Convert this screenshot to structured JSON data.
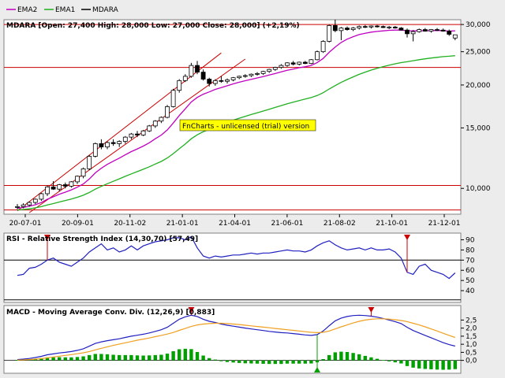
{
  "legend": [
    {
      "name": "EMA2",
      "color": "#c000c0"
    },
    {
      "name": "EMA1",
      "color": "#20b020"
    },
    {
      "name": "MDARA",
      "color": "#000000"
    }
  ],
  "price_title": "MDARA [Open: 27,400  High: 28,000  Low: 27,000  Close: 28,000] (+2,19%)",
  "rsi_title": "RSI - Relative Strength Index (14,30,70) [57,49]",
  "macd_title": "MACD - Moving Average Conv. Div. (12,26,9) [0,883]",
  "watermark": "FnCharts - unlicensed (trial) version",
  "colors": {
    "background": "#ececec",
    "panel": "#ffffff",
    "up": "#ffffff",
    "down": "#000000",
    "ema2": "#c000c0",
    "ema1": "#20b020",
    "rsi": "#2020c0",
    "macd": "#2020c0",
    "signal": "#f0a020",
    "hist": "#00a000",
    "hline": "#cc0000",
    "watermark_bg": "#ffff00"
  },
  "chart_data": [
    {
      "type": "candlestick",
      "title": "MDARA [Open: 27,400  High: 28,000  Low: 27,000  Close: 28,000] (+2,19%)",
      "y_scale": "log",
      "ylim": [
        8500,
        30500
      ],
      "y_ticks": [
        {
          "value": 10000,
          "label": "10,000"
        },
        {
          "value": 15000,
          "label": "15,000"
        },
        {
          "value": 20000,
          "label": "20,000"
        },
        {
          "value": 25000,
          "label": "25,000"
        },
        {
          "value": 30000,
          "label": "30,000"
        }
      ],
      "x_ticks": [
        "20-07-01",
        "20-09-01",
        "20-11-02",
        "21-01-01",
        "21-04-01",
        "21-06-01",
        "21-08-02",
        "21-10-01",
        "21-12-01"
      ],
      "horizontal_lines": [
        30000,
        22500,
        10200,
        8650
      ],
      "candles": [
        [
          8800,
          9000,
          8700,
          8850
        ],
        [
          8850,
          9050,
          8750,
          8950
        ],
        [
          8950,
          9150,
          8850,
          9100
        ],
        [
          9100,
          9350,
          9000,
          9300
        ],
        [
          9300,
          9700,
          9200,
          9650
        ],
        [
          9650,
          10200,
          9500,
          10100
        ],
        [
          10100,
          10500,
          9900,
          9950
        ],
        [
          9950,
          10300,
          9800,
          10250
        ],
        [
          10250,
          10400,
          10000,
          10150
        ],
        [
          10150,
          10500,
          10050,
          10450
        ],
        [
          10450,
          10900,
          10300,
          10850
        ],
        [
          10850,
          11500,
          10700,
          11400
        ],
        [
          11400,
          12500,
          11300,
          12400
        ],
        [
          12400,
          13600,
          12300,
          13500
        ],
        [
          13500,
          13900,
          13000,
          13200
        ],
        [
          13200,
          13700,
          13000,
          13600
        ],
        [
          13600,
          13900,
          13300,
          13500
        ],
        [
          13500,
          13800,
          13200,
          13700
        ],
        [
          13700,
          14200,
          13500,
          14100
        ],
        [
          14100,
          14500,
          13900,
          14400
        ],
        [
          14400,
          14700,
          14100,
          14300
        ],
        [
          14300,
          14800,
          14200,
          14700
        ],
        [
          14700,
          15300,
          14600,
          15200
        ],
        [
          15200,
          15800,
          15000,
          15700
        ],
        [
          15700,
          16200,
          15500,
          16100
        ],
        [
          16100,
          17500,
          16000,
          17300
        ],
        [
          17300,
          19500,
          17200,
          19300
        ],
        [
          19300,
          20800,
          19000,
          20600
        ],
        [
          20600,
          21500,
          20400,
          21200
        ],
        [
          21200,
          23200,
          21000,
          22800
        ],
        [
          22800,
          23500,
          21500,
          21800
        ],
        [
          21800,
          22200,
          20600,
          20800
        ],
        [
          20800,
          21000,
          19800,
          20200
        ],
        [
          20200,
          20800,
          19900,
          20600
        ],
        [
          20600,
          21200,
          20300,
          20500
        ],
        [
          20500,
          20900,
          20200,
          20700
        ],
        [
          20700,
          21100,
          20500,
          21000
        ],
        [
          21000,
          21300,
          20800,
          21200
        ],
        [
          21200,
          21500,
          21000,
          21300
        ],
        [
          21300,
          21600,
          21100,
          21500
        ],
        [
          21500,
          21800,
          21300,
          21600
        ],
        [
          21600,
          22000,
          21400,
          21900
        ],
        [
          21900,
          22300,
          21700,
          22200
        ],
        [
          22200,
          22600,
          22000,
          22500
        ],
        [
          22500,
          23000,
          22300,
          22800
        ],
        [
          22800,
          23300,
          22600,
          23200
        ],
        [
          23200,
          23500,
          22800,
          23000
        ],
        [
          23000,
          23400,
          22800,
          23300
        ],
        [
          23300,
          23500,
          23000,
          23100
        ],
        [
          23100,
          23800,
          23000,
          23700
        ],
        [
          23700,
          25200,
          23600,
          25000
        ],
        [
          25000,
          27000,
          24800,
          26800
        ],
        [
          26800,
          30000,
          26600,
          29800
        ],
        [
          29800,
          31000,
          28500,
          28800
        ],
        [
          28800,
          29500,
          27000,
          29300
        ],
        [
          29300,
          29600,
          28800,
          29000
        ],
        [
          29000,
          29500,
          28700,
          29300
        ],
        [
          29300,
          29800,
          29000,
          29600
        ],
        [
          29600,
          29900,
          29300,
          29500
        ],
        [
          29500,
          29800,
          29200,
          29700
        ],
        [
          29700,
          29900,
          29400,
          29600
        ],
        [
          29600,
          29800,
          29300,
          29400
        ],
        [
          29400,
          29700,
          29100,
          29500
        ],
        [
          29500,
          29700,
          29200,
          29300
        ],
        [
          29300,
          29500,
          28800,
          28900
        ],
        [
          28900,
          29200,
          27500,
          28200
        ],
        [
          28200,
          28900,
          26800,
          28600
        ],
        [
          28600,
          29200,
          28400,
          29000
        ],
        [
          29000,
          29300,
          28600,
          28700
        ],
        [
          28700,
          29100,
          28400,
          29000
        ],
        [
          29000,
          29300,
          28700,
          28900
        ],
        [
          28900,
          29200,
          28600,
          28700
        ],
        [
          28700,
          29000,
          27800,
          28100
        ],
        [
          27400,
          28000,
          27000,
          28000
        ]
      ],
      "series": [
        {
          "name": "EMA2",
          "values": [
            8750,
            8800,
            8870,
            8960,
            9100,
            9300,
            9450,
            9620,
            9750,
            9900,
            10080,
            10300,
            10650,
            11100,
            11450,
            11750,
            12000,
            12250,
            12520,
            12800,
            13030,
            13280,
            13580,
            13950,
            14300,
            14800,
            15500,
            16300,
            17050,
            17850,
            18400,
            18800,
            19100,
            19420,
            19650,
            19900,
            20150,
            20380,
            20580,
            20780,
            20960,
            21160,
            21380,
            21600,
            21840,
            22070,
            22260,
            22450,
            22600,
            22800,
            23250,
            23900,
            24900,
            25800,
            26600,
            27200,
            27650,
            28050,
            28300,
            28500,
            28650,
            28750,
            28850,
            28900,
            28900,
            28780,
            28750,
            28780,
            28760,
            28800,
            28820,
            28800,
            28700,
            28750
          ]
        },
        {
          "name": "EMA1",
          "values": [
            8650,
            8680,
            8720,
            8780,
            8850,
            8950,
            9030,
            9130,
            9220,
            9310,
            9420,
            9550,
            9730,
            9950,
            10140,
            10320,
            10490,
            10660,
            10840,
            11020,
            11190,
            11370,
            11560,
            11770,
            11980,
            12260,
            12620,
            13040,
            13460,
            13950,
            14320,
            14620,
            14870,
            15120,
            15350,
            15580,
            15800,
            16010,
            16210,
            16410,
            16600,
            16800,
            17000,
            17210,
            17420,
            17640,
            17830,
            18020,
            18200,
            18380,
            18640,
            18990,
            19470,
            19920,
            20360,
            20750,
            21120,
            21480,
            21800,
            22100,
            22370,
            22620,
            22850,
            23060,
            23240,
            23380,
            23540,
            23700,
            23830,
            23960,
            24080,
            24190,
            24260,
            24340
          ]
        }
      ],
      "trend_lines": [
        {
          "from": [
            0,
            8600
          ],
          "to": [
            34,
            24800
          ]
        },
        {
          "from": [
            2,
            8500
          ],
          "to": [
            38,
            23800
          ]
        }
      ]
    },
    {
      "type": "line",
      "title": "RSI - Relative Strength Index (14,30,70) [57,49]",
      "ylim": [
        30,
        95
      ],
      "y_ticks": [
        40,
        50,
        60,
        70,
        80,
        90
      ],
      "horizontal_lines": [
        70,
        31
      ],
      "series": [
        {
          "name": "RSI",
          "values": [
            55,
            56,
            62,
            63,
            66,
            70,
            72,
            68,
            66,
            64,
            68,
            72,
            78,
            82,
            86,
            80,
            82,
            78,
            80,
            84,
            80,
            84,
            86,
            88,
            89,
            90,
            92,
            92,
            90,
            93,
            82,
            74,
            72,
            74,
            73,
            74,
            75,
            75,
            76,
            77,
            76,
            77,
            77,
            78,
            79,
            80,
            79,
            79,
            78,
            80,
            84,
            87,
            89,
            85,
            82,
            80,
            81,
            82,
            80,
            82,
            80,
            80,
            81,
            78,
            72,
            58,
            56,
            64,
            66,
            60,
            58,
            56,
            52,
            57.49
          ]
        }
      ],
      "signal_markers": [
        {
          "index": 5,
          "kind": "down"
        },
        {
          "index": 65,
          "kind": "down"
        }
      ]
    },
    {
      "type": "line",
      "title": "MACD - Moving Average Conv. Div. (12,26,9) [0,883]",
      "ylim": [
        -0.7,
        3.3
      ],
      "y_ticks": [
        {
          "value": 0,
          "label": "0,0"
        },
        {
          "value": 0.5,
          "label": "0,5"
        },
        {
          "value": 1,
          "label": "1,0"
        },
        {
          "value": 1.5,
          "label": "1,5"
        },
        {
          "value": 2,
          "label": "2,0"
        },
        {
          "value": 2.5,
          "label": "2,5"
        }
      ],
      "horizontal_lines": [
        0
      ],
      "series": [
        {
          "name": "MACD",
          "values": [
            0.05,
            0.08,
            0.12,
            0.18,
            0.25,
            0.35,
            0.4,
            0.46,
            0.5,
            0.55,
            0.62,
            0.72,
            0.88,
            1.05,
            1.15,
            1.22,
            1.28,
            1.34,
            1.42,
            1.5,
            1.56,
            1.62,
            1.7,
            1.8,
            1.9,
            2.05,
            2.3,
            2.55,
            2.7,
            2.8,
            2.72,
            2.55,
            2.42,
            2.35,
            2.25,
            2.18,
            2.12,
            2.06,
            2.0,
            1.95,
            1.9,
            1.85,
            1.8,
            1.76,
            1.72,
            1.7,
            1.66,
            1.62,
            1.58,
            1.55,
            1.6,
            1.82,
            2.15,
            2.45,
            2.62,
            2.72,
            2.78,
            2.8,
            2.78,
            2.74,
            2.68,
            2.6,
            2.5,
            2.4,
            2.28,
            2.05,
            1.85,
            1.7,
            1.55,
            1.4,
            1.25,
            1.1,
            0.98,
            0.883
          ]
        },
        {
          "name": "Signal",
          "values": [
            0.02,
            0.03,
            0.05,
            0.08,
            0.11,
            0.16,
            0.21,
            0.26,
            0.31,
            0.36,
            0.41,
            0.47,
            0.55,
            0.65,
            0.75,
            0.84,
            0.93,
            1.01,
            1.09,
            1.17,
            1.25,
            1.32,
            1.39,
            1.47,
            1.55,
            1.63,
            1.73,
            1.86,
            1.98,
            2.1,
            2.2,
            2.25,
            2.28,
            2.3,
            2.3,
            2.28,
            2.25,
            2.22,
            2.18,
            2.14,
            2.1,
            2.06,
            2.02,
            1.98,
            1.94,
            1.9,
            1.86,
            1.82,
            1.78,
            1.74,
            1.72,
            1.74,
            1.82,
            1.95,
            2.08,
            2.2,
            2.32,
            2.42,
            2.5,
            2.55,
            2.58,
            2.58,
            2.56,
            2.52,
            2.47,
            2.4,
            2.3,
            2.2,
            2.08,
            1.95,
            1.82,
            1.68,
            1.55,
            1.42
          ]
        },
        {
          "name": "Histogram",
          "values": [
            0.03,
            0.05,
            0.07,
            0.1,
            0.14,
            0.19,
            0.19,
            0.2,
            0.19,
            0.19,
            0.21,
            0.25,
            0.33,
            0.4,
            0.4,
            0.38,
            0.35,
            0.33,
            0.33,
            0.33,
            0.31,
            0.3,
            0.31,
            0.33,
            0.35,
            0.42,
            0.57,
            0.69,
            0.72,
            0.7,
            0.52,
            0.3,
            0.14,
            0.05,
            -0.05,
            -0.1,
            -0.13,
            -0.16,
            -0.18,
            -0.19,
            -0.2,
            -0.21,
            -0.22,
            -0.22,
            -0.22,
            -0.2,
            -0.2,
            -0.2,
            -0.2,
            -0.19,
            -0.12,
            0.08,
            0.33,
            0.5,
            0.54,
            0.52,
            0.46,
            0.38,
            0.28,
            0.19,
            0.1,
            0.02,
            -0.06,
            -0.12,
            -0.19,
            -0.35,
            -0.45,
            -0.5,
            -0.53,
            -0.55,
            -0.57,
            -0.58,
            -0.57,
            -0.54
          ]
        }
      ],
      "signal_markers": [
        {
          "index": 29,
          "kind": "down"
        },
        {
          "index": 50,
          "kind": "up"
        },
        {
          "index": 59,
          "kind": "down"
        }
      ]
    }
  ]
}
